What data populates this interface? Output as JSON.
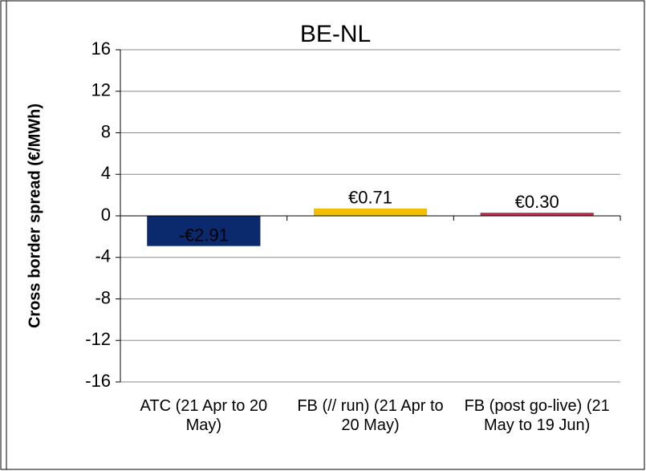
{
  "chart_data": {
    "type": "bar",
    "title": "BE-NL",
    "y_label": "Cross border spread (€/MWh)",
    "categories": [
      "ATC (21 Apr to 20 May)",
      "FB (// run) (21 Apr to 20 May)",
      "FB (post go-live) (21 May to 19 Jun)"
    ],
    "values": [
      -2.91,
      0.71,
      0.3
    ],
    "value_labels": [
      "-€2.91",
      "€0.71",
      "€0.30"
    ],
    "colors": [
      "#0b2a6e",
      "#f0c000",
      "#c0304a"
    ],
    "ylim": [
      -16,
      16
    ],
    "yticks": [
      -16,
      -12,
      -8,
      -4,
      0,
      4,
      8,
      12,
      16
    ],
    "grid": true
  }
}
